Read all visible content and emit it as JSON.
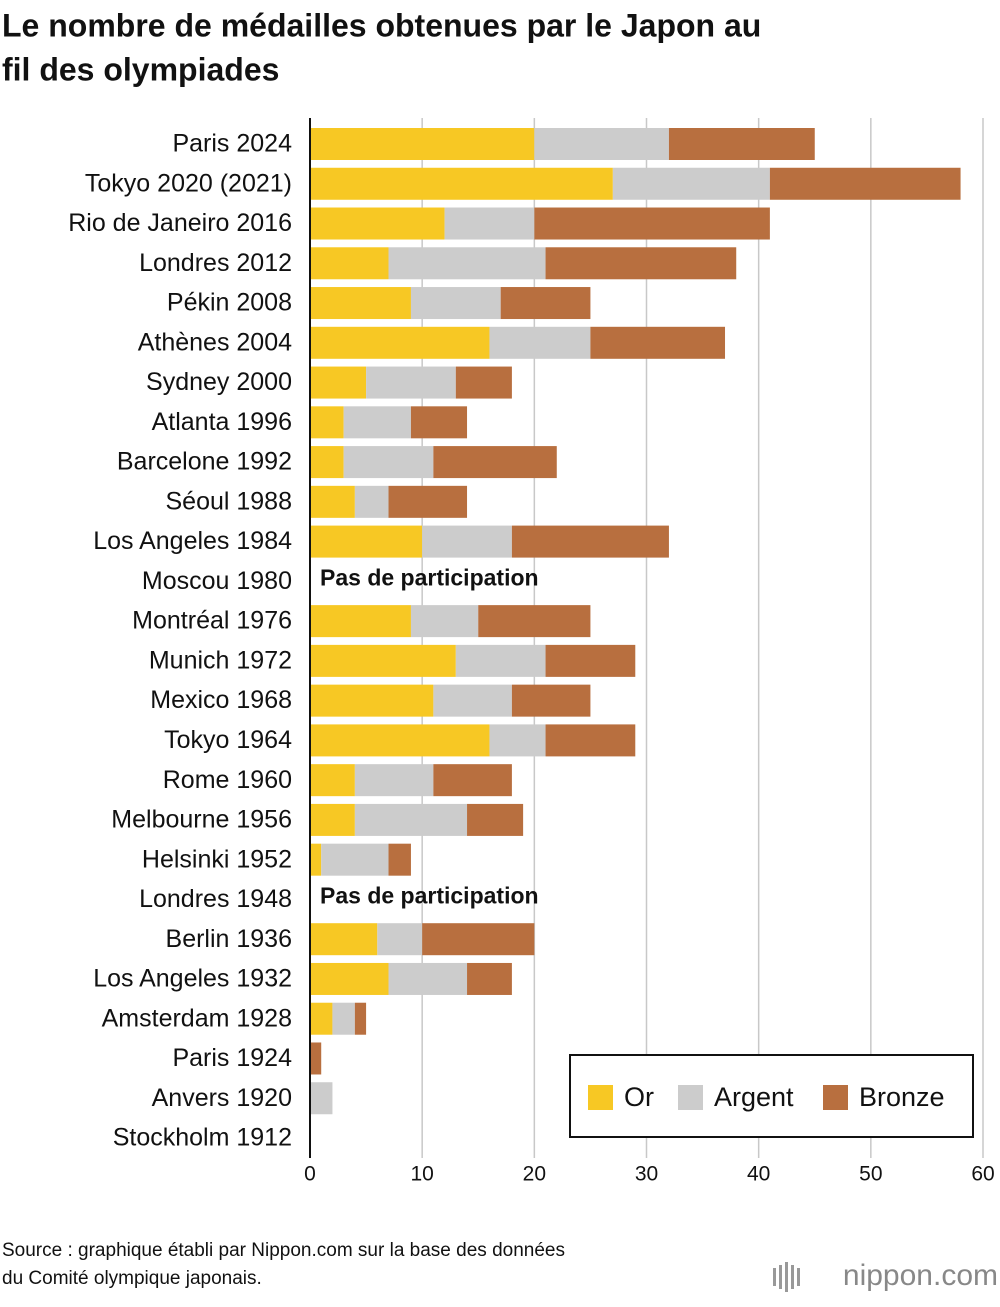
{
  "chart_data": {
    "type": "stacked-bar-horizontal",
    "title": [
      "Le nombre de médailles obtenues par le Japon au",
      "fil des olympiades"
    ],
    "categories": [
      "Paris 2024",
      "Tokyo 2020 (2021)",
      "Rio de Janeiro 2016",
      "Londres 2012",
      "Pékin 2008",
      "Athènes 2004",
      "Sydney 2000",
      "Atlanta 1996",
      "Barcelone 1992",
      "Séoul 1988",
      "Los Angeles 1984",
      "Moscou 1980",
      "Montréal 1976",
      "Munich 1972",
      "Mexico 1968",
      "Tokyo 1964",
      "Rome 1960",
      "Melbourne 1956",
      "Helsinki 1952",
      "Londres 1948",
      "Berlin 1936",
      "Los Angeles 1932",
      "Amsterdam 1928",
      "Paris 1924",
      "Anvers 1920",
      "Stockholm 1912"
    ],
    "series": [
      {
        "name": "Or",
        "color": "#f7c824",
        "values": [
          20,
          27,
          12,
          7,
          9,
          16,
          5,
          3,
          3,
          4,
          10,
          null,
          9,
          13,
          11,
          16,
          4,
          4,
          1,
          null,
          6,
          7,
          2,
          0,
          0,
          0
        ]
      },
      {
        "name": "Argent",
        "color": "#cccccc",
        "values": [
          12,
          14,
          8,
          14,
          8,
          9,
          8,
          6,
          8,
          3,
          8,
          null,
          6,
          8,
          7,
          5,
          7,
          10,
          6,
          null,
          4,
          7,
          2,
          0,
          2,
          0
        ]
      },
      {
        "name": "Bronze",
        "color": "#b86f3f",
        "values": [
          13,
          17,
          21,
          17,
          8,
          12,
          5,
          5,
          11,
          7,
          14,
          null,
          10,
          8,
          7,
          8,
          7,
          5,
          2,
          null,
          10,
          4,
          1,
          1,
          0,
          0
        ]
      }
    ],
    "annotations": [
      "Pas de participation",
      "Pas de participation"
    ],
    "xlim": [
      0,
      60
    ],
    "xticks": [
      0,
      10,
      20,
      30,
      40,
      50,
      60
    ],
    "grid": true,
    "legend": "lower-right",
    "source": [
      "Source : graphique établi par Nippon.com sur la base des données",
      "du Comité olympique japonais."
    ],
    "brand": "nippon.com"
  }
}
